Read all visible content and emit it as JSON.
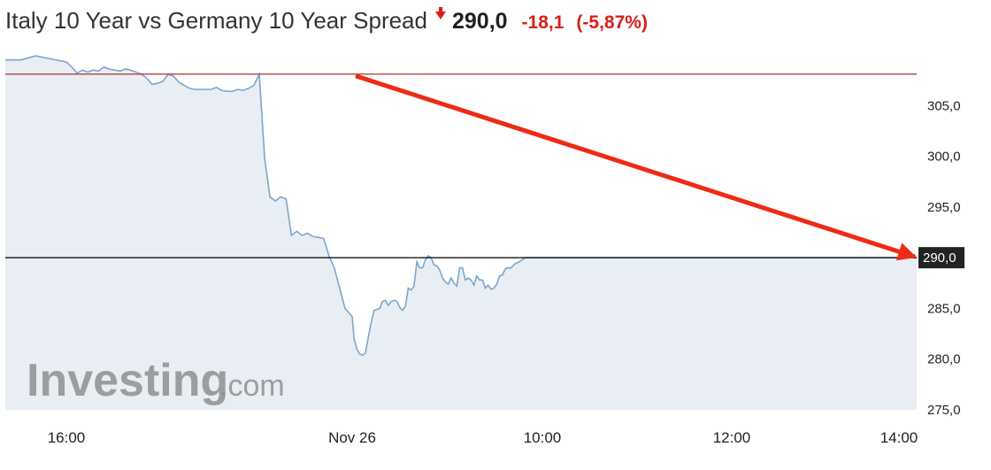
{
  "header": {
    "title": "Italy 10 Year vs Germany 10 Year Spread",
    "price": "290,0",
    "change": "-18,1",
    "change_percent": "(-5,87%)",
    "direction_icon": "down-arrow-icon",
    "change_color": "#d91e18"
  },
  "watermark": {
    "brand": "Investing",
    "suffix": ".com"
  },
  "current_price_tag": "290,0",
  "colors": {
    "line": "#7ba6cc",
    "area": "#e8eef4",
    "reference_line": "#b03030",
    "current_line": "#000000",
    "trend_arrow": "#ee2b15",
    "price_tag_bg": "#222222"
  },
  "chart_data": {
    "type": "area",
    "title": "Italy 10 Year vs Germany 10 Year Spread",
    "xlabel": "",
    "ylabel": "",
    "ylim": [
      275,
      310
    ],
    "yticks": [
      275,
      280,
      285,
      290,
      295,
      300,
      305
    ],
    "ytick_labels": [
      "275,0",
      "280,0",
      "285,0",
      "290,0",
      "295,0",
      "300,0",
      "305,0"
    ],
    "xticks": [
      {
        "label": "16:00",
        "hour": 16.0
      },
      {
        "label": "Nov 26",
        "hour": 24.0
      },
      {
        "label": "10:00",
        "hour": 34.0
      },
      {
        "label": "12:00",
        "hour": 36.0
      },
      {
        "label": "14:00",
        "hour": 38.0
      }
    ],
    "x_range": [
      15.4,
      38.3
    ],
    "reference_line": 308.1,
    "current_value": 290.0,
    "grid": false,
    "legend": "none",
    "series": [
      {
        "x": [
          15.4,
          15.55,
          15.7,
          15.85,
          16.0,
          16.15,
          16.3,
          16.45,
          16.6,
          16.75,
          16.9,
          17.05,
          17.2,
          17.35,
          17.5,
          17.65,
          17.8,
          17.95,
          18.1,
          18.25,
          18.4,
          18.55,
          18.7,
          18.85,
          19.0,
          19.15,
          19.3,
          19.45,
          19.6,
          19.75,
          19.9,
          20.05,
          20.2,
          20.35,
          20.5,
          20.65,
          20.8,
          20.95,
          21.1,
          21.25,
          21.4,
          21.55,
          21.7,
          21.85,
          22.0,
          22.15,
          22.3,
          22.45,
          22.6,
          22.75,
          22.9,
          23.05,
          23.2,
          23.35,
          23.5,
          23.65,
          23.8,
          24.0,
          24.1,
          24.25,
          24.4,
          24.55,
          24.7,
          24.85,
          25.0,
          25.15,
          25.3,
          25.45,
          25.6,
          25.75,
          25.9,
          26.05,
          26.2,
          26.35,
          26.5,
          26.65,
          26.8,
          26.95,
          27.1,
          27.25,
          27.4,
          27.55,
          27.7,
          27.85,
          28.0,
          28.15,
          28.3,
          28.45,
          28.6,
          28.75,
          28.9,
          29.05,
          29.2,
          29.35,
          29.5,
          29.65,
          29.8,
          29.95,
          30.1,
          30.25,
          30.4,
          30.55,
          30.7,
          30.85,
          31.0,
          31.15,
          31.3,
          31.45,
          31.6,
          31.75,
          31.9,
          32.05,
          32.2,
          32.35,
          32.5,
          32.65,
          32.8,
          32.95,
          33.1,
          33.25,
          33.4,
          33.55,
          33.7,
          33.85,
          34.0,
          34.15,
          34.3,
          34.45,
          34.6,
          34.75,
          34.9,
          35.05,
          35.2,
          35.35,
          35.5,
          35.65,
          35.8,
          35.95,
          36.1,
          36.25,
          36.4,
          36.55,
          36.7,
          36.85,
          37.0,
          37.15,
          37.3,
          37.45,
          37.6,
          37.75,
          37.9,
          38.05,
          38.2,
          38.3
        ],
        "values": [
          309.5,
          309.5,
          309.9,
          309.6,
          309.3,
          308.8,
          308.2,
          308.5,
          308.3,
          308.5,
          308.4,
          308.8,
          308.6,
          308.5,
          308.4,
          308.6,
          308.5,
          308.3,
          308.1,
          307.7,
          307.1,
          307.2,
          307.4,
          308.1,
          307.9,
          307.3,
          307.0,
          306.7,
          306.6,
          306.6,
          306.6,
          306.6,
          306.8,
          306.5,
          306.4,
          306.4,
          306.6,
          306.5,
          306.7,
          307.0,
          308.1,
          299.8,
          296.0,
          295.6,
          296.0,
          295.8,
          292.2,
          292.6,
          292.2,
          292.4,
          292.1,
          292.0,
          291.9,
          290.2,
          289.0,
          287.0,
          285.0,
          284.2,
          282.0,
          281.0,
          280.5,
          280.4,
          280.6,
          282.2,
          283.6,
          284.8,
          284.9,
          285.0,
          285.7,
          285.8,
          285.3,
          285.7,
          285.8,
          285.7,
          285.1,
          284.8,
          285.2,
          287.0,
          286.8,
          287.2,
          289.6,
          289.0,
          289.0,
          289.8,
          290.2,
          290.0,
          289.3,
          289.2,
          288.8,
          288.0,
          287.6,
          287.4,
          288.0,
          287.5,
          287.2,
          289.0,
          289.0,
          287.8,
          288.0,
          287.8,
          287.3,
          288.2,
          287.8,
          287.8,
          287.0,
          287.3,
          286.9,
          287.0,
          287.4,
          288.2,
          288.3,
          288.9,
          289.0,
          289.0,
          289.3,
          289.5,
          289.6,
          289.8,
          290.0,
          290.0,
          290.0,
          290.0,
          290.0,
          290.0,
          290.0,
          290.0,
          290.0,
          290.0,
          290.0,
          290.0,
          290.0,
          290.0,
          290.0,
          290.0,
          290.0,
          290.0,
          290.0,
          290.0,
          290.0,
          290.0,
          290.0,
          290.0,
          290.0,
          290.0,
          290.0,
          290.0,
          290.0,
          290.0,
          290.0,
          290.0,
          290.0,
          290.0,
          290.0,
          290.0
        ]
      }
    ],
    "annotations": [
      {
        "type": "trend_arrow",
        "from": {
          "hour": 24.0,
          "value": 308.1
        },
        "to": {
          "hour": 38.3,
          "value": 290.0
        }
      }
    ]
  }
}
